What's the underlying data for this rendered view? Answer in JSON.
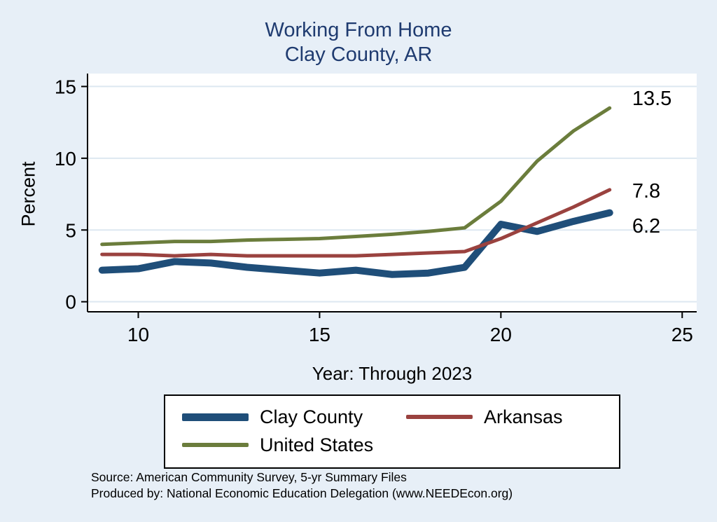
{
  "chart": {
    "title_line1": "Working From Home",
    "title_line2": "Clay County, AR",
    "title_color": "#1f3b70",
    "background_color": "#e7eff7",
    "plot_background": "#ffffff",
    "gridline_color": "#dde8f1"
  },
  "chart_data": {
    "type": "line",
    "title": "Working From Home — Clay County, AR",
    "xlabel": "Year: Through 2023",
    "ylabel": "Percent",
    "x": [
      9,
      10,
      11,
      12,
      13,
      14,
      15,
      16,
      17,
      18,
      19,
      20,
      21,
      22,
      23
    ],
    "series": [
      {
        "name": "Clay County",
        "color": "#1f4e79",
        "thick": true,
        "values": [
          2.2,
          2.3,
          2.8,
          2.7,
          2.4,
          2.2,
          2.0,
          2.2,
          1.9,
          2.0,
          2.4,
          5.4,
          4.9,
          5.6,
          6.2
        ]
      },
      {
        "name": "Arkansas",
        "color": "#9a423f",
        "thick": false,
        "values": [
          3.3,
          3.3,
          3.2,
          3.3,
          3.2,
          3.2,
          3.2,
          3.2,
          3.3,
          3.4,
          3.5,
          4.4,
          5.5,
          6.6,
          7.8
        ]
      },
      {
        "name": "United States",
        "color": "#6b7d3c",
        "thick": false,
        "values": [
          4.0,
          4.1,
          4.2,
          4.2,
          4.3,
          4.35,
          4.4,
          4.55,
          4.7,
          4.9,
          5.15,
          7.0,
          9.8,
          11.9,
          13.5
        ]
      }
    ],
    "end_labels": [
      {
        "text": "13.5",
        "x": 23.35,
        "y": 14.2
      },
      {
        "text": "7.8",
        "x": 23.35,
        "y": 7.75
      },
      {
        "text": "6.2",
        "x": 23.35,
        "y": 5.3
      }
    ],
    "xlim": [
      8.6,
      25.4
    ],
    "ylim": [
      -0.7,
      15.9
    ],
    "xticks": [
      10,
      15,
      20,
      25
    ],
    "yticks": [
      0,
      5,
      10,
      15
    ],
    "grid": true,
    "legend_position": "bottom"
  },
  "footer": {
    "source": "Source: American Community Survey, 5-yr Summary Files",
    "produced_by": "Produced by: National Economic Education Delegation (www.NEEDEcon.org)"
  }
}
